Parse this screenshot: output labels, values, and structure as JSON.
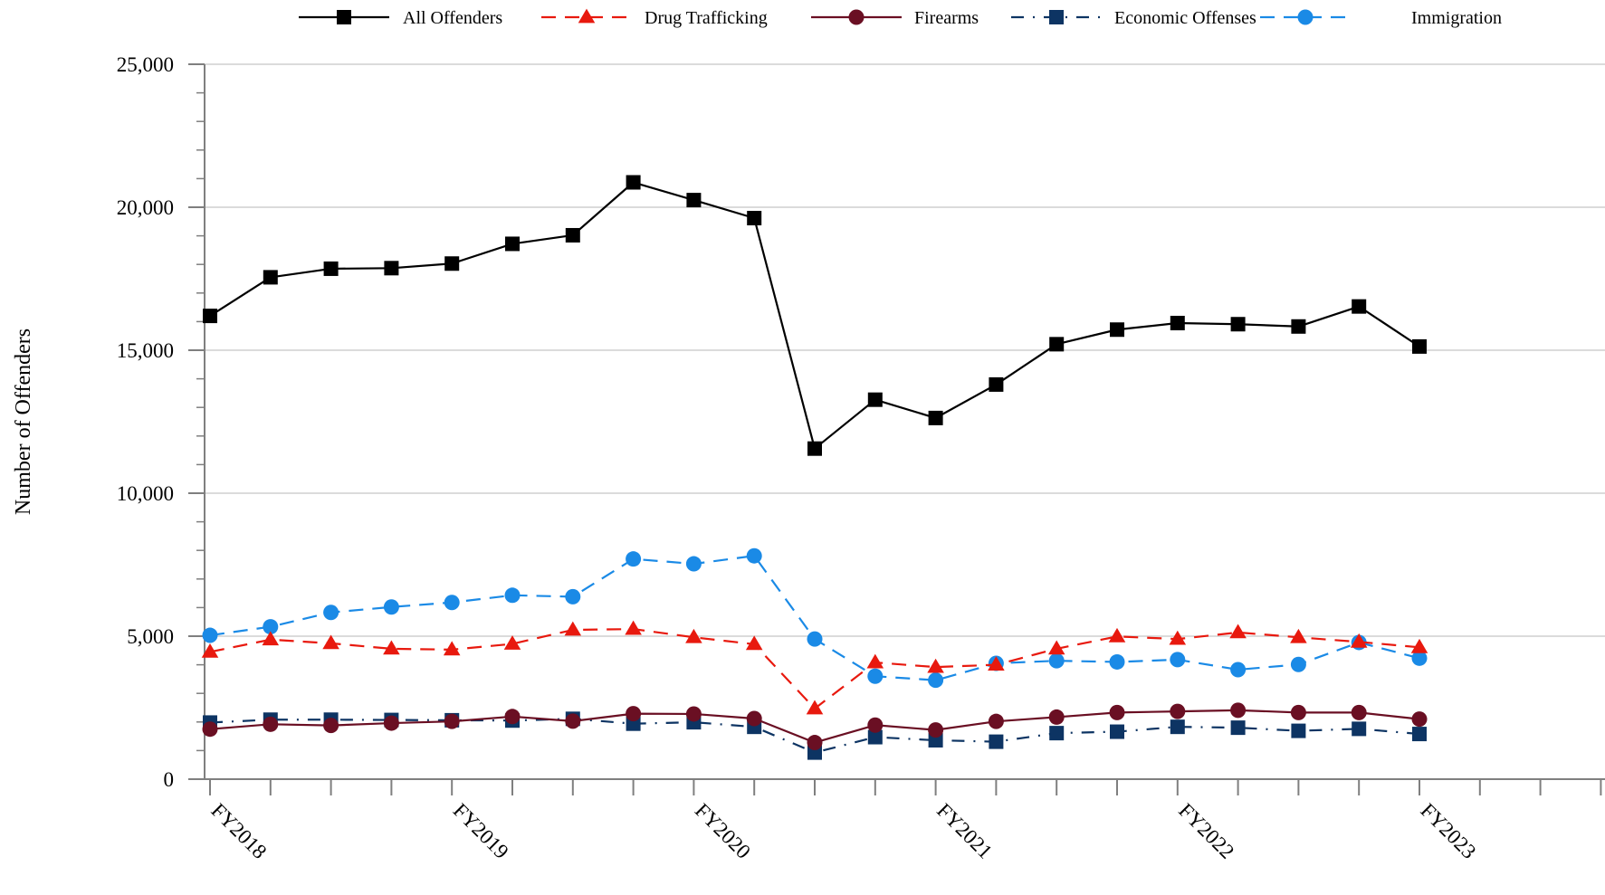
{
  "chart_data": {
    "type": "line",
    "ylabel": "Number of Offenders",
    "ylim": [
      0,
      25000
    ],
    "yticks": [
      0,
      5000,
      10000,
      15000,
      20000,
      25000
    ],
    "ytick_labels": [
      "0",
      "5,000",
      "10,000",
      "15,000",
      "20,000",
      "25,000"
    ],
    "x_slots": 24,
    "x_labels": [
      {
        "index": 0,
        "label": "FY2018"
      },
      {
        "index": 4,
        "label": "FY2019"
      },
      {
        "index": 8,
        "label": "FY2020"
      },
      {
        "index": 12,
        "label": "FY2021"
      },
      {
        "index": 16,
        "label": "FY2022"
      },
      {
        "index": 20,
        "label": "FY2023"
      }
    ],
    "grid": true,
    "legend_position": "top",
    "series": [
      {
        "name": "All Offenders",
        "color": "#000000",
        "dash": "solid",
        "marker": "square",
        "values": [
          16200,
          17550,
          17850,
          17870,
          18030,
          18720,
          19020,
          20870,
          20250,
          19620,
          11560,
          13270,
          12630,
          13800,
          15210,
          15720,
          15950,
          15910,
          15830,
          16530,
          15130
        ]
      },
      {
        "name": "Drug Trafficking",
        "color": "#e8190e",
        "dash": "dashed",
        "marker": "triangle",
        "values": [
          4450,
          4880,
          4750,
          4560,
          4530,
          4730,
          5220,
          5250,
          4960,
          4720,
          2470,
          4080,
          3920,
          4000,
          4560,
          4990,
          4900,
          5130,
          4960,
          4800,
          4610
        ]
      },
      {
        "name": "Firearms",
        "color": "#6a0f23",
        "dash": "solid",
        "marker": "circle",
        "values": [
          1750,
          1920,
          1880,
          1960,
          2020,
          2190,
          2030,
          2290,
          2280,
          2120,
          1280,
          1890,
          1720,
          2020,
          2170,
          2330,
          2370,
          2410,
          2330,
          2330,
          2100
        ]
      },
      {
        "name": "Economic Offenses",
        "color": "#0d3463",
        "dash": "dashdot",
        "marker": "square",
        "values": [
          1980,
          2080,
          2080,
          2070,
          2060,
          2050,
          2110,
          1940,
          1990,
          1830,
          930,
          1470,
          1360,
          1310,
          1610,
          1660,
          1830,
          1800,
          1690,
          1760,
          1580
        ]
      },
      {
        "name": "Immigration",
        "color": "#1a8ae6",
        "dash": "dashed",
        "marker": "circle",
        "values": [
          5030,
          5330,
          5830,
          6020,
          6180,
          6430,
          6380,
          7700,
          7530,
          7810,
          4900,
          3600,
          3460,
          4050,
          4140,
          4100,
          4180,
          3830,
          4010,
          4780,
          4230
        ]
      }
    ]
  }
}
